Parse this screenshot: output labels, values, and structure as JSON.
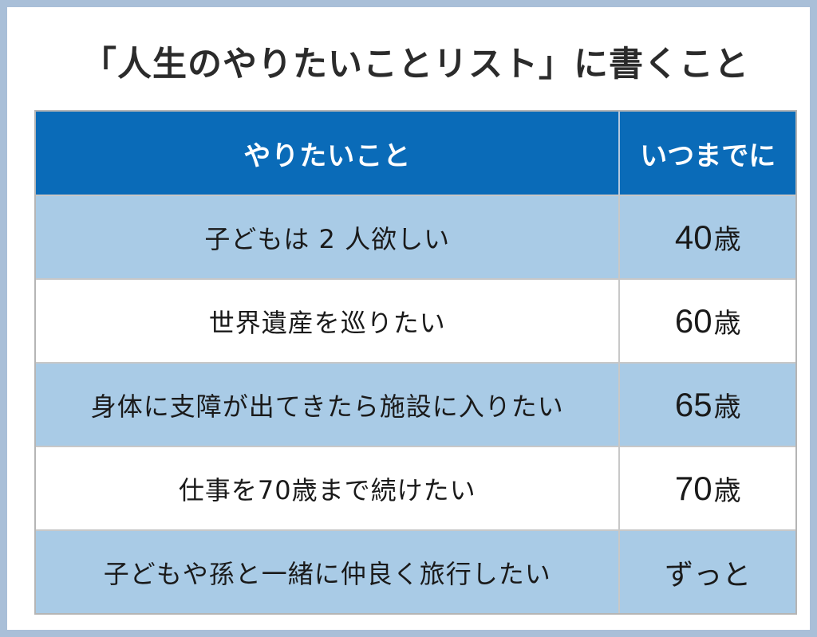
{
  "title": "「人生のやりたいことリスト」に書くこと",
  "table": {
    "headers": {
      "wish": "やりたいこと",
      "deadline": "いつまでに"
    },
    "rows": [
      {
        "wish": "子どもは 2 人欲しい",
        "age": "40",
        "unit": "歳"
      },
      {
        "wish": "世界遺産を巡りたい",
        "age": "60",
        "unit": "歳"
      },
      {
        "wish": "身体に支障が出てきたら施設に入りたい",
        "age": "65",
        "unit": "歳"
      },
      {
        "wish": "仕事を70歳まで続けたい",
        "age": "70",
        "unit": "歳"
      },
      {
        "wish": "子どもや孫と一緒に仲良く旅行したい",
        "age": "ずっと",
        "unit": ""
      }
    ]
  },
  "colors": {
    "header_bg": "#0a6bb8",
    "row_blue": "#a9cbe6",
    "row_white": "#ffffff",
    "frame": "#a9bfd8"
  }
}
